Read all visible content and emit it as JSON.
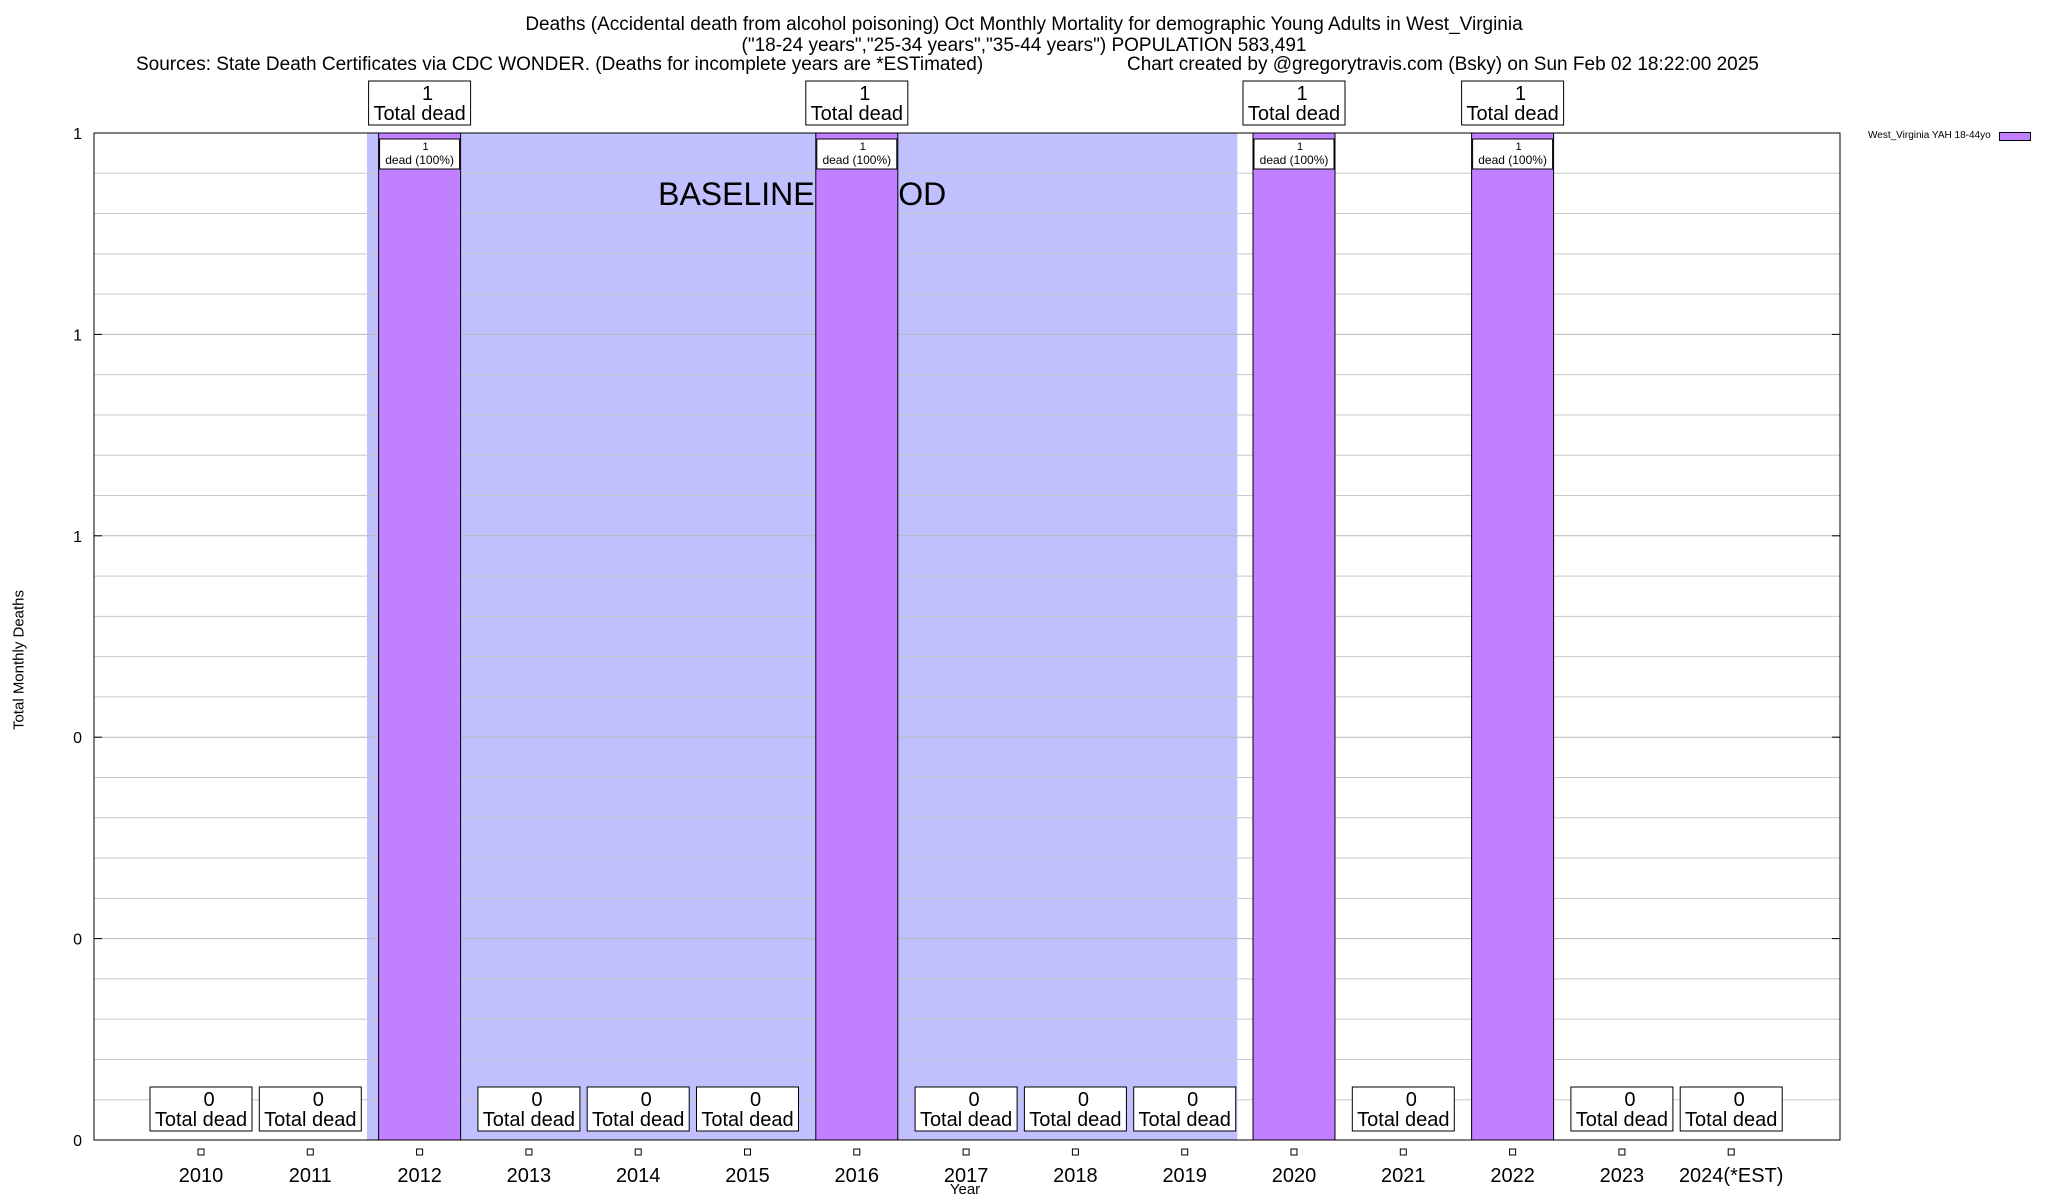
{
  "header": {
    "title_line1": "Deaths (Accidental death from alcohol poisoning) Oct Monthly Mortality for demographic Young Adults in West_Virginia",
    "title_line2": "(\"18-24 years\",\"25-34 years\",\"35-44 years\") POPULATION 583,491",
    "sources": "Sources: State Death Certificates via CDC WONDER. (Deaths for incomplete years are *ESTimated)",
    "created": "Chart created by @gregorytravis.com (Bsky) on Sun Feb 02 18:22:00 2025"
  },
  "colors": {
    "bar": "#c080ff",
    "baseline": "#c0c0ff",
    "grid": "#c8c8c8"
  },
  "chart_data": {
    "type": "bar",
    "xlabel": "Year",
    "ylabel": "Total Monthly Deaths",
    "ylim": [
      0,
      1
    ],
    "y_tick_labels": [
      "0",
      "0",
      "0",
      "1",
      "1",
      "1"
    ],
    "categories": [
      "2010",
      "2011",
      "2012",
      "2013",
      "2014",
      "2015",
      "2016",
      "2017",
      "2018",
      "2019",
      "2020",
      "2021",
      "2022",
      "2023",
      "2024(*EST)"
    ],
    "series": [
      {
        "name": "West_Virginia YAH 18-44yo",
        "values": [
          0,
          0,
          1,
          0,
          0,
          0,
          1,
          0,
          0,
          0,
          1,
          0,
          1,
          0,
          0
        ]
      }
    ],
    "total_label_suffix": "Total dead",
    "inner_label_text": "dead (100%)",
    "annotation": "BASELINE PERIOD",
    "baseline_range": [
      "2012",
      "2019"
    ],
    "grid": true,
    "legend_position": "top-right"
  }
}
